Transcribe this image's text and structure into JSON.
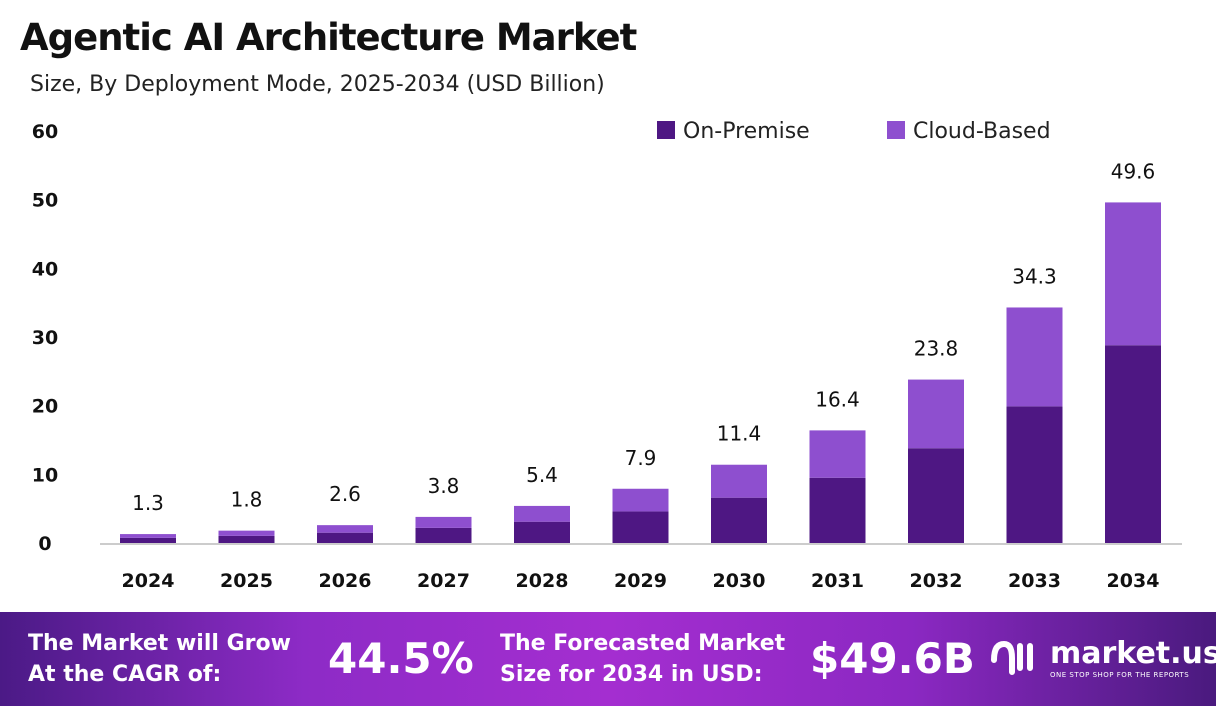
{
  "chart_data": {
    "type": "bar",
    "stacked": true,
    "title": "Agentic AI Architecture Market",
    "subtitle": "Size, By Deployment Mode, 2025-2034 (USD Billion)",
    "categories": [
      "2024",
      "2025",
      "2026",
      "2027",
      "2028",
      "2029",
      "2030",
      "2031",
      "2032",
      "2033",
      "2034"
    ],
    "series": [
      {
        "name": "On-Premise",
        "color": "#4e1783",
        "values": [
          0.75,
          1.04,
          1.5,
          2.2,
          3.1,
          4.6,
          6.6,
          9.5,
          13.8,
          19.9,
          28.8
        ]
      },
      {
        "name": "Cloud-Based",
        "color": "#8e4fcf",
        "values": [
          0.55,
          0.76,
          1.1,
          1.6,
          2.3,
          3.3,
          4.8,
          6.9,
          10.0,
          14.4,
          20.8
        ]
      }
    ],
    "totals": [
      "1.3",
      "1.8",
      "2.6",
      "3.8",
      "5.4",
      "7.9",
      "11.4",
      "16.4",
      "23.8",
      "34.3",
      "49.6"
    ],
    "yticks": [
      0,
      10,
      20,
      30,
      40,
      50,
      60
    ],
    "ylim": [
      0,
      60
    ],
    "grid": false,
    "legend_position": "top-right"
  },
  "footer": {
    "cagr_label_1": "The Market will Grow",
    "cagr_label_2": "At the CAGR of:",
    "cagr_value": "44.5%",
    "forecast_label_1": "The Forecasted Market",
    "forecast_label_2": "Size for 2034 in USD:",
    "forecast_value": "$49.6B",
    "logo_text": "market.us",
    "logo_tagline": "ONE STOP SHOP FOR THE REPORTS"
  }
}
